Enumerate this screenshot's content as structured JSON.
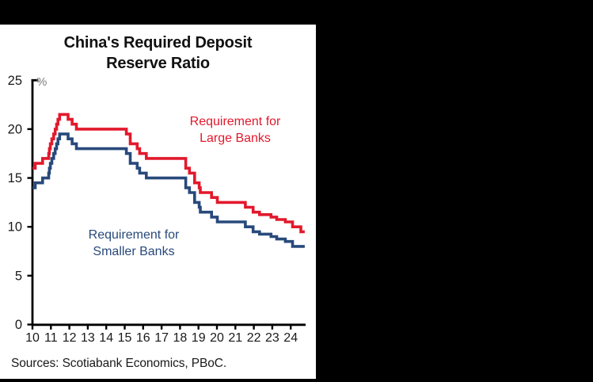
{
  "window": {
    "background": "#000000"
  },
  "chart": {
    "title": "China's Required Deposit\nReserve Ratio",
    "unit_label": "%",
    "annotations": {
      "large": "Requirement for\nLarge Banks",
      "small": "Requirement for\nSmaller Banks"
    },
    "source_note": "Sources: Scotiabank Economics, PBoC."
  },
  "chart_data": {
    "type": "line",
    "style": "step-after",
    "title": "China's Required Deposit Reserve Ratio",
    "xlabel": "",
    "ylabel": "%",
    "ylim": [
      0,
      25
    ],
    "y_ticks": [
      0,
      5,
      10,
      15,
      20,
      25
    ],
    "x_tick_years": [
      2010,
      2011,
      2012,
      2013,
      2014,
      2015,
      2016,
      2017,
      2018,
      2019,
      2020,
      2021,
      2022,
      2023,
      2024
    ],
    "x_tick_labels": [
      "10",
      "11",
      "12",
      "13",
      "14",
      "15",
      "16",
      "17",
      "18",
      "19",
      "20",
      "21",
      "22",
      "23",
      "24"
    ],
    "x_start": 2010.0,
    "x_end": 2024.76,
    "grid": false,
    "legend_position": "inline-annotations",
    "axis_color": "#000000",
    "series": [
      {
        "name": "Requirement for Large Banks",
        "slug": "large-banks",
        "color": "#e2192c",
        "steps": [
          [
            2010.0,
            16.0
          ],
          [
            2010.15,
            16.5
          ],
          [
            2010.55,
            17.0
          ],
          [
            2010.88,
            17.5
          ],
          [
            2010.92,
            18.0
          ],
          [
            2010.97,
            18.5
          ],
          [
            2011.05,
            19.0
          ],
          [
            2011.15,
            19.5
          ],
          [
            2011.23,
            20.0
          ],
          [
            2011.31,
            20.5
          ],
          [
            2011.38,
            21.0
          ],
          [
            2011.47,
            21.5
          ],
          [
            2011.93,
            21.0
          ],
          [
            2012.15,
            20.5
          ],
          [
            2012.38,
            20.0
          ],
          [
            2015.09,
            19.5
          ],
          [
            2015.3,
            18.5
          ],
          [
            2015.68,
            18.0
          ],
          [
            2015.81,
            17.5
          ],
          [
            2016.17,
            17.0
          ],
          [
            2018.31,
            16.0
          ],
          [
            2018.51,
            15.5
          ],
          [
            2018.79,
            14.5
          ],
          [
            2019.04,
            14.0
          ],
          [
            2019.1,
            13.5
          ],
          [
            2019.71,
            13.0
          ],
          [
            2020.02,
            12.5
          ],
          [
            2021.54,
            12.0
          ],
          [
            2021.96,
            11.5
          ],
          [
            2022.31,
            11.25
          ],
          [
            2022.93,
            11.0
          ],
          [
            2023.24,
            10.75
          ],
          [
            2023.71,
            10.5
          ],
          [
            2024.1,
            10.0
          ],
          [
            2024.55,
            9.5
          ]
        ]
      },
      {
        "name": "Requirement for Smaller Banks",
        "slug": "smaller-banks",
        "color": "#28497b",
        "steps": [
          [
            2010.0,
            14.0
          ],
          [
            2010.15,
            14.5
          ],
          [
            2010.55,
            15.0
          ],
          [
            2010.88,
            15.5
          ],
          [
            2010.92,
            16.0
          ],
          [
            2010.97,
            16.5
          ],
          [
            2011.05,
            17.0
          ],
          [
            2011.15,
            17.5
          ],
          [
            2011.23,
            18.0
          ],
          [
            2011.31,
            18.5
          ],
          [
            2011.38,
            19.0
          ],
          [
            2011.47,
            19.5
          ],
          [
            2011.93,
            19.0
          ],
          [
            2012.15,
            18.5
          ],
          [
            2012.38,
            18.0
          ],
          [
            2015.09,
            17.5
          ],
          [
            2015.3,
            16.5
          ],
          [
            2015.68,
            16.0
          ],
          [
            2015.81,
            15.5
          ],
          [
            2016.17,
            15.0
          ],
          [
            2018.31,
            14.0
          ],
          [
            2018.51,
            13.5
          ],
          [
            2018.79,
            12.5
          ],
          [
            2019.04,
            12.0
          ],
          [
            2019.1,
            11.5
          ],
          [
            2019.71,
            11.0
          ],
          [
            2020.02,
            10.5
          ],
          [
            2021.54,
            10.0
          ],
          [
            2021.96,
            9.5
          ],
          [
            2022.31,
            9.25
          ],
          [
            2022.93,
            9.0
          ],
          [
            2023.24,
            8.75
          ],
          [
            2023.71,
            8.5
          ],
          [
            2024.1,
            8.0
          ]
        ]
      }
    ]
  }
}
